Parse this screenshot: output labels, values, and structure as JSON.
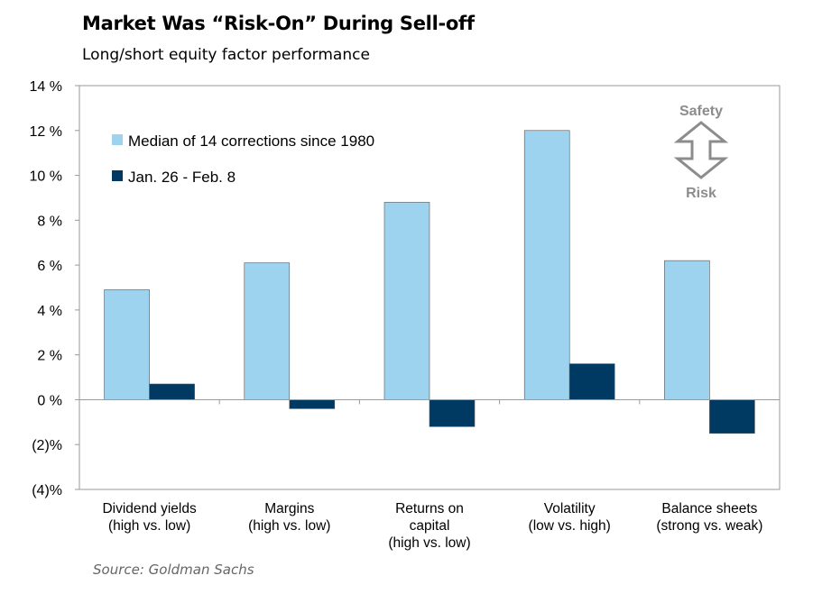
{
  "title": "Market Was “Risk-On” During Sell-off",
  "subtitle": "Long/short equity factor performance",
  "source": "Source: Goldman Sachs",
  "annotation": {
    "top": "Safety",
    "bottom": "Risk",
    "icon": "double-arrow-icon"
  },
  "colors": {
    "series1": "#9DD3EE",
    "series2": "#003A63",
    "axis": "#9a9a9a"
  },
  "chart_data": {
    "type": "bar",
    "title": "Market Was “Risk-On” During Sell-off",
    "subtitle": "Long/short equity factor performance",
    "categories": [
      [
        "Dividend yields",
        "(high vs. low)"
      ],
      [
        "Margins",
        "(high vs. low)"
      ],
      [
        "Returns on",
        "capital",
        "(high vs. low)"
      ],
      [
        "Volatility",
        "(low vs. high)"
      ],
      [
        "Balance sheets",
        "(strong vs. weak)"
      ]
    ],
    "series": [
      {
        "name": "Median of 14 corrections since 1980",
        "values": [
          4.9,
          6.1,
          8.8,
          12.0,
          6.2
        ]
      },
      {
        "name": "Jan. 26 - Feb. 8",
        "values": [
          0.7,
          -0.4,
          -1.2,
          1.6,
          -1.5
        ]
      }
    ],
    "ylim": [
      -4,
      14
    ],
    "yticks": [
      14,
      12,
      10,
      8,
      6,
      4,
      2,
      0,
      -2,
      -4
    ],
    "ytick_labels": [
      "14 %",
      "12 %",
      "10 %",
      "8 %",
      "6 %",
      "4 %",
      "2 %",
      "0 %",
      "(2)%",
      "(4)%"
    ],
    "grid": false,
    "legend": "top-left"
  }
}
